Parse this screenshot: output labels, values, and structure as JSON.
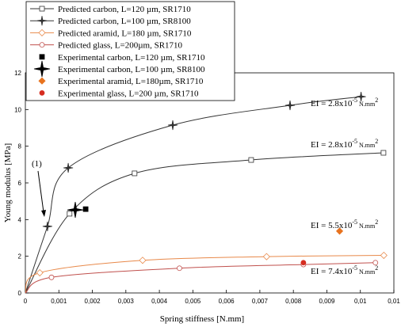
{
  "chart_data": {
    "type": "line",
    "xlabel": "Spring stiffness [N.mm]",
    "ylabel": "Young modulus [MPa]",
    "xlim": [
      0,
      0.011
    ],
    "xticks": [
      0,
      {
        "value": 0.001,
        "label": "0,001"
      },
      {
        "value": 0.002,
        "label": "0,002"
      },
      {
        "value": 0.003,
        "label": "0,003"
      },
      {
        "value": 0.004,
        "label": "0,004"
      },
      {
        "value": 0.005,
        "label": "0,005"
      },
      {
        "value": 0.006,
        "label": "0,006"
      },
      {
        "value": 0.007,
        "label": "0,007"
      },
      {
        "value": 0.008,
        "label": "0,008"
      },
      {
        "value": 0.009,
        "label": "0,009"
      },
      {
        "value": 0.01,
        "label": "0,01"
      },
      {
        "value": 0.011,
        "label": "0,01"
      }
    ],
    "ylim": [
      0,
      12
    ],
    "yticks": [
      0,
      2,
      4,
      6,
      8,
      10,
      12
    ],
    "legend_position": "top-left",
    "series": [
      {
        "name": "Predicted carbon, L=120 µm, SR1710",
        "color": "#333333",
        "marker": "square",
        "filled": false,
        "line": true,
        "x": [
          0,
          0.00132,
          0.00326,
          0.00674,
          0.01069
        ],
        "values": [
          0,
          4.32,
          6.52,
          7.25,
          7.64
        ]
      },
      {
        "name": "Predicted carbon, L=100 µm, SR8100",
        "color": "#333333",
        "marker": "star",
        "filled": true,
        "line": true,
        "x": [
          0,
          0.00066,
          0.00128,
          0.0044,
          0.0079,
          0.01002
        ],
        "values": [
          0,
          3.63,
          6.82,
          9.15,
          10.23,
          10.7
        ]
      },
      {
        "name": "Predicted aramid, L=180 µm, SR1710",
        "color": "#e8894a",
        "marker": "diamond",
        "filled": false,
        "line": true,
        "x": [
          0,
          0.00043,
          0.0035,
          0.0072,
          0.0107
        ],
        "values": [
          0,
          1.1,
          1.78,
          1.98,
          2.05
        ]
      },
      {
        "name": "Predicted glass, L=200µm, SR1710",
        "color": "#c0504d",
        "marker": "circle",
        "filled": false,
        "line": true,
        "x": [
          0,
          0.00078,
          0.0046,
          0.0083,
          0.01045
        ],
        "values": [
          0,
          0.85,
          1.35,
          1.55,
          1.65
        ]
      },
      {
        "name": "Experimental carbon, L=120 µm, SR1710",
        "color": "#000000",
        "marker": "square",
        "filled": true,
        "line": false,
        "x": [
          0.0018
        ],
        "values": [
          4.57
        ]
      },
      {
        "name": "Experimental carbon, L=100 µm, SR8100",
        "color": "#000000",
        "marker": "bigstar",
        "filled": true,
        "line": false,
        "x": [
          0.00149
        ],
        "values": [
          4.53
        ]
      },
      {
        "name": "Experimental aramid, L=180µm, SR1710",
        "color": "#e8731f",
        "marker": "diamond",
        "filled": true,
        "line": false,
        "x": [
          0.00938
        ],
        "values": [
          3.37
        ]
      },
      {
        "name": "Experimental glass, L=200 µm, SR1710",
        "color": "#d62d20",
        "marker": "circle",
        "filled": true,
        "line": false,
        "x": [
          0.0083
        ],
        "values": [
          1.65
        ]
      }
    ],
    "annotations": [
      {
        "text": "EI = 2.8x10",
        "exp": "-5",
        "unit": " N.mm",
        "unit_exp": "2"
      },
      {
        "text": "EI = 2.8x10",
        "exp": "-5",
        "unit": " N.mm",
        "unit_exp": "2"
      },
      {
        "text": "EI = 5.5x10",
        "exp": "-5",
        "unit": " N.mm",
        "unit_exp": "2"
      },
      {
        "text": "EI = 7.4x10",
        "exp": "-5",
        "unit": " N.mm",
        "unit_exp": "2"
      }
    ],
    "callout": "(1)"
  }
}
